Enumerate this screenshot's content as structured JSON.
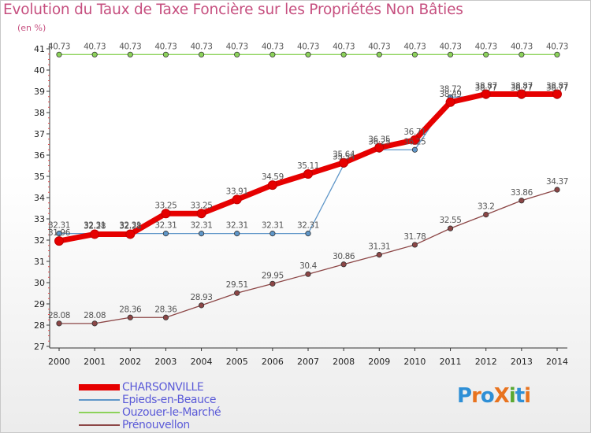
{
  "header": {
    "title": "Evolution du Taux de Taxe Foncière sur les Propriétés Non Bâties",
    "unit": "(en %)"
  },
  "chart_data": {
    "type": "line",
    "title": "Evolution du Taux de Taxe Foncière sur les Propriétés Non Bâties",
    "ylabel": "(en %)",
    "xlabel": "",
    "x": [
      "2000",
      "2001",
      "2002",
      "2003",
      "2004",
      "2005",
      "2006",
      "2007",
      "2008",
      "2009",
      "2010",
      "2011",
      "2012",
      "2013",
      "2014"
    ],
    "ylim": [
      27,
      41
    ],
    "yticks": [
      27,
      28,
      29,
      30,
      31,
      32,
      33,
      34,
      35,
      36,
      37,
      38,
      39,
      40,
      41
    ],
    "grid": false,
    "legend_position": "bottom-left",
    "series": [
      {
        "name": "CHARSONVILLE",
        "color": "#e60000",
        "values": [
          31.96,
          32.28,
          32.28,
          33.25,
          33.25,
          33.91,
          34.59,
          35.11,
          35.64,
          36.35,
          36.71,
          38.49,
          38.87,
          38.87,
          38.87
        ],
        "labels": [
          "31.96",
          "32.28",
          "32.28",
          "33.25",
          "33.25",
          "33.91",
          "34.59",
          "35.11",
          "35.64",
          "36.35",
          "36.71",
          "38.49",
          "38.87",
          "38.87",
          "38.87"
        ]
      },
      {
        "name": "Epieds-en-Beauce",
        "color": "#5f96c8",
        "values": [
          32.31,
          32.31,
          32.31,
          32.31,
          32.31,
          32.31,
          32.31,
          32.31,
          35.54,
          36.25,
          36.25,
          38.72,
          38.77,
          38.77,
          38.77
        ],
        "labels": [
          "32.31",
          "32.31",
          "32.31",
          "32.31",
          "32.31",
          "32.31",
          "32.31",
          "32.31",
          "35.54",
          "36.25",
          "36.25",
          "38.72",
          "38.77",
          "38.77",
          "38.77"
        ]
      },
      {
        "name": "Ouzouer-le-Marché",
        "color": "#8cd25a",
        "values": [
          40.73,
          40.73,
          40.73,
          40.73,
          40.73,
          40.73,
          40.73,
          40.73,
          40.73,
          40.73,
          40.73,
          40.73,
          40.73,
          40.73,
          40.73
        ],
        "labels": [
          "40.73",
          "40.73",
          "40.73",
          "40.73",
          "40.73",
          "40.73",
          "40.73",
          "40.73",
          "40.73",
          "40.73",
          "40.73",
          "40.73",
          "40.73",
          "40.73",
          "40.73"
        ]
      },
      {
        "name": "Prénouvellon",
        "color": "#8c4646",
        "values": [
          28.08,
          28.08,
          28.36,
          28.36,
          28.93,
          29.51,
          29.95,
          30.4,
          30.86,
          31.31,
          31.78,
          32.55,
          33.2,
          33.86,
          34.37
        ],
        "labels": [
          "28.08",
          "28.08",
          "28.36",
          "28.36",
          "28.93",
          "29.51",
          "29.95",
          "30.4",
          "30.86",
          "31.31",
          "31.78",
          "32.55",
          "33.2",
          "33.86",
          "34.37"
        ]
      }
    ]
  },
  "logo": {
    "text": "ProXiti"
  }
}
